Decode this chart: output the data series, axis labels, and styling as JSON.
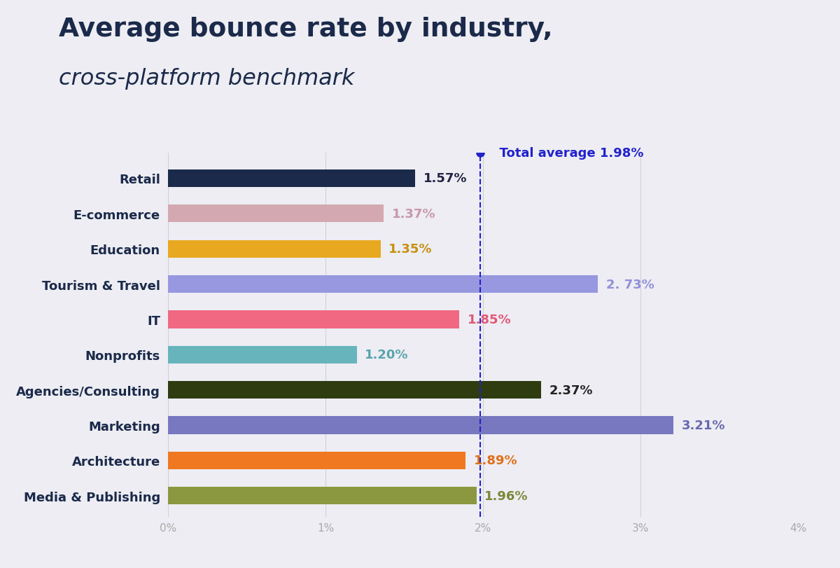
{
  "title_line1": "Average bounce rate by industry,",
  "title_line2": "cross-platform benchmark",
  "categories": [
    "Retail",
    "E-commerce",
    "Education",
    "Tourism & Travel",
    "IT",
    "Nonprofits",
    "Agencies/Consulting",
    "Marketing",
    "Architecture",
    "Media & Publishing"
  ],
  "values": [
    1.57,
    1.37,
    1.35,
    2.73,
    1.85,
    1.2,
    2.37,
    3.21,
    1.89,
    1.96
  ],
  "value_labels": [
    "1.57%",
    "1.37%",
    "1.35%",
    "2. 73%",
    "1.85%",
    "1.20%",
    "2.37%",
    "3.21%",
    "1.89%",
    "1.96%"
  ],
  "bar_colors": [
    "#1b2a4a",
    "#d4a8b0",
    "#e8a820",
    "#9898e0",
    "#f06882",
    "#68b4bc",
    "#2e3c10",
    "#7878c0",
    "#f07820",
    "#8c9840"
  ],
  "label_colors": [
    "#222244",
    "#c898a8",
    "#c89010",
    "#9090d8",
    "#e05878",
    "#58a4ac",
    "#222222",
    "#6868b0",
    "#e07018",
    "#7c8838"
  ],
  "total_avg": 1.98,
  "xlim": [
    0,
    4.0
  ],
  "xticks": [
    0,
    1,
    2,
    3,
    4
  ],
  "xtick_labels": [
    "0%",
    "1%",
    "2%",
    "3%",
    "4%"
  ],
  "background_color": "#ededf3",
  "avg_line_color": "#2222cc",
  "avg_label_color": "#2222cc",
  "title_color": "#1b2a4a",
  "ytick_color": "#1b2a4a",
  "label_fontsize": 13,
  "value_fontsize": 13,
  "bar_height": 0.5,
  "avg_annotation": "  Total average 1.98%"
}
